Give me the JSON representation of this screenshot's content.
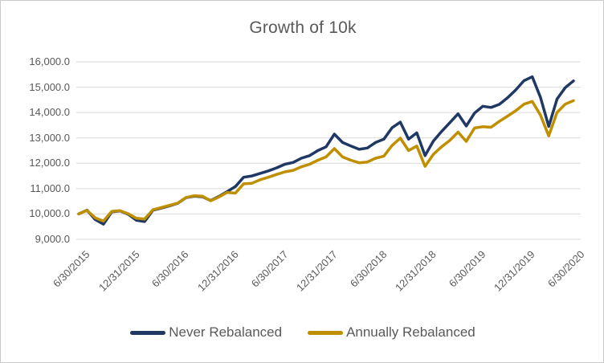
{
  "chart_data": {
    "type": "line",
    "title": "Growth of 10k",
    "x_axis": {
      "interval": "monthly",
      "points_count": 61,
      "tick_labels": [
        "6/30/2015",
        "12/31/2015",
        "6/30/2016",
        "12/31/2016",
        "6/30/2017",
        "12/31/2017",
        "6/30/2018",
        "12/31/2018",
        "6/30/2019",
        "12/31/2019",
        "6/30/2020"
      ],
      "tick_indices": [
        0,
        6,
        12,
        18,
        24,
        30,
        36,
        42,
        48,
        54,
        60
      ]
    },
    "y_axis": {
      "min": 9000,
      "max": 16000,
      "step": 1000,
      "tick_labels": [
        "9,000.0",
        "10,000.0",
        "11,000.0",
        "12,000.0",
        "13,000.0",
        "14,000.0",
        "15,000.0",
        "16,000.0"
      ]
    },
    "grid": true,
    "legend_position": "bottom",
    "series": [
      {
        "name": "Never Rebalanced",
        "color": "#1F3864",
        "values": [
          10000,
          10150,
          9780,
          9600,
          10080,
          10120,
          9990,
          9750,
          9700,
          10150,
          10230,
          10320,
          10420,
          10640,
          10700,
          10680,
          10530,
          10690,
          10880,
          11080,
          11450,
          11500,
          11600,
          11700,
          11820,
          11960,
          12030,
          12200,
          12300,
          12500,
          12650,
          13150,
          12820,
          12680,
          12550,
          12600,
          12820,
          12950,
          13400,
          13620,
          12950,
          13200,
          12300,
          12870,
          13250,
          13600,
          13950,
          13470,
          13980,
          14250,
          14200,
          14320,
          14580,
          14890,
          15260,
          15410,
          14600,
          13450,
          14530,
          14980,
          15250
        ]
      },
      {
        "name": "Annually Rebalanced",
        "color": "#BF8F00",
        "values": [
          10000,
          10140,
          9850,
          9720,
          10100,
          10130,
          10010,
          9830,
          9800,
          10170,
          10250,
          10340,
          10430,
          10650,
          10720,
          10700,
          10520,
          10670,
          10850,
          10820,
          11190,
          11210,
          11350,
          11450,
          11560,
          11660,
          11720,
          11860,
          11960,
          12120,
          12250,
          12580,
          12250,
          12120,
          12020,
          12050,
          12200,
          12280,
          12700,
          12990,
          12500,
          12680,
          11880,
          12350,
          12650,
          12900,
          13230,
          12860,
          13390,
          13440,
          13420,
          13650,
          13860,
          14070,
          14330,
          14440,
          13900,
          13080,
          14000,
          14330,
          14470
        ]
      }
    ],
    "style": {
      "text_color": "#595959",
      "gridline_color": "#D9D9D9",
      "background": "#FFFFFF",
      "border_color": "#C9C9C9"
    }
  }
}
